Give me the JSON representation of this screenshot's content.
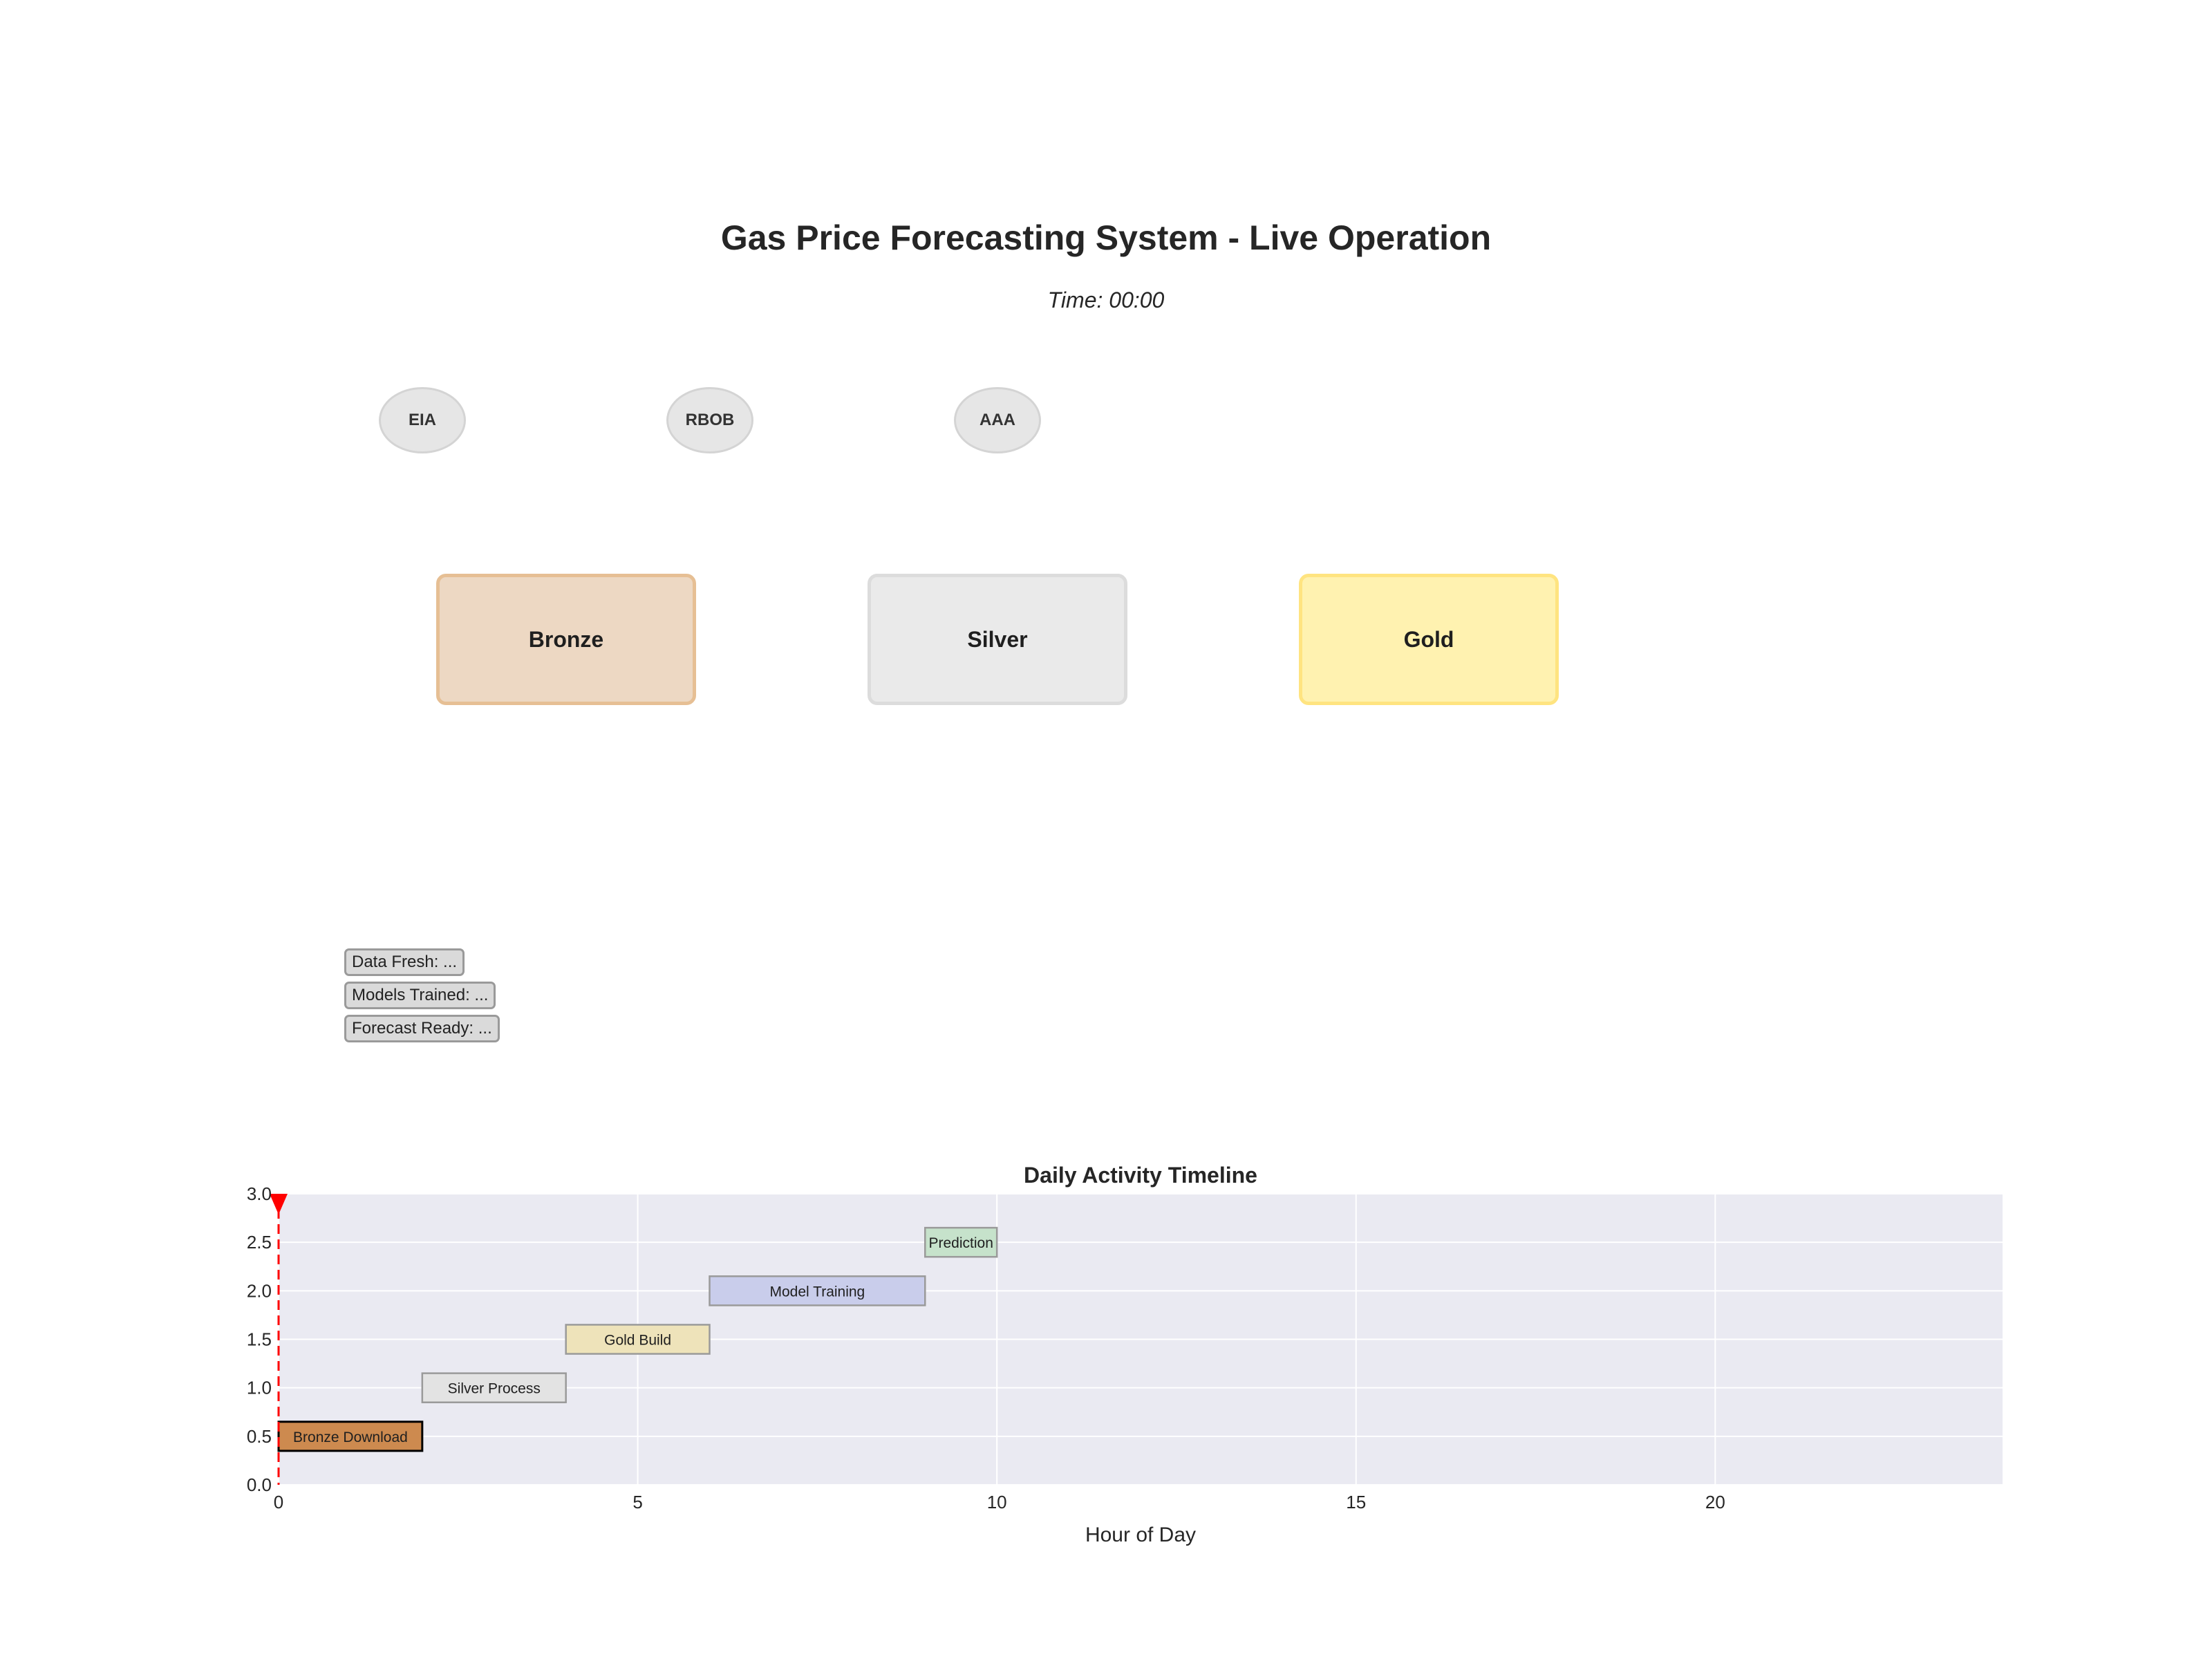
{
  "header": {
    "title": "Gas Price Forecasting System - Live Operation",
    "time_label": "Time: 00:00"
  },
  "sources": [
    {
      "label": "EIA"
    },
    {
      "label": "RBOB"
    },
    {
      "label": "AAA"
    }
  ],
  "layers": [
    {
      "label": "Bronze",
      "fill": "#edd8c3",
      "border": "#e6bf94"
    },
    {
      "label": "Silver",
      "fill": "#eaeaea",
      "border": "#dcdcdc"
    },
    {
      "label": "Gold",
      "fill": "#fff2b0",
      "border": "#ffe480"
    }
  ],
  "status": [
    {
      "label": "Data Fresh: ..."
    },
    {
      "label": "Models Trained: ..."
    },
    {
      "label": "Forecast Ready: ..."
    }
  ],
  "chart_data": {
    "type": "timeline",
    "title": "Daily Activity Timeline",
    "xlabel": "Hour of Day",
    "ylabel": "",
    "xlim": [
      0,
      24
    ],
    "ylim": [
      0,
      3
    ],
    "xticks": [
      0,
      5,
      10,
      15,
      20
    ],
    "yticks": [
      0.0,
      0.5,
      1.0,
      1.5,
      2.0,
      2.5,
      3.0
    ],
    "grid": true,
    "current_hour": 0,
    "tasks": [
      {
        "name": "Bronze Download",
        "start": 0,
        "end": 2,
        "y": 0.5,
        "color": "#cd8a4f",
        "active": true
      },
      {
        "name": "Silver Process",
        "start": 2,
        "end": 4,
        "y": 1.0,
        "color": "#e3e3e3",
        "active": false
      },
      {
        "name": "Gold Build",
        "start": 4,
        "end": 6,
        "y": 1.5,
        "color": "#eee3ba",
        "active": false
      },
      {
        "name": "Model Training",
        "start": 6,
        "end": 9,
        "y": 2.0,
        "color": "#c9cdeb",
        "active": false
      },
      {
        "name": "Prediction",
        "start": 9,
        "end": 10,
        "y": 2.5,
        "color": "#c6e2cb",
        "active": false
      }
    ]
  }
}
